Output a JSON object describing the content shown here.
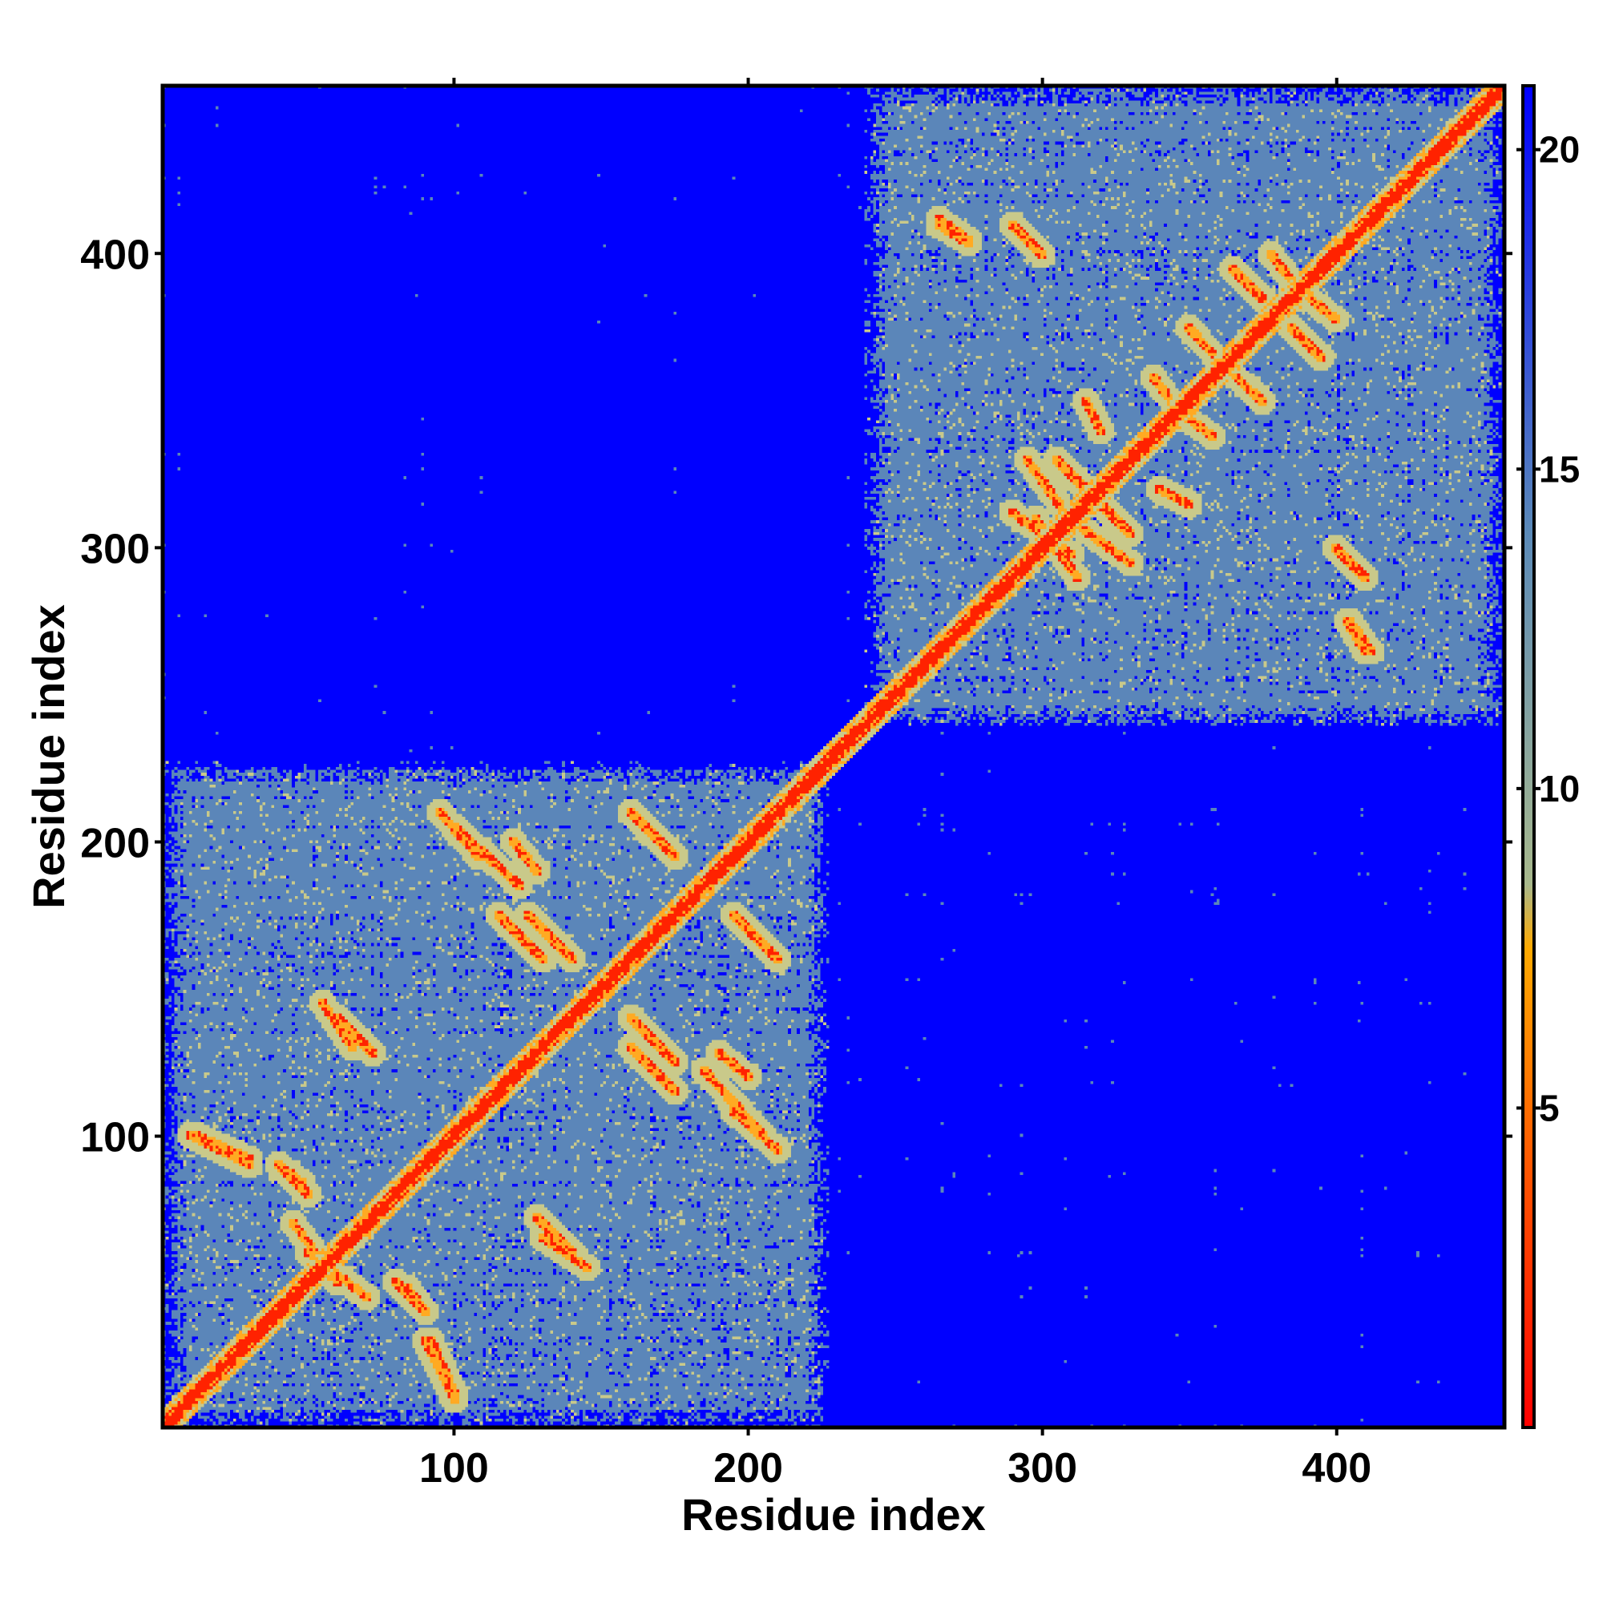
{
  "chart_data": {
    "type": "heatmap",
    "title": "",
    "xlabel": "Residue index",
    "ylabel": "Residue index",
    "xlim": [
      1,
      457
    ],
    "ylim": [
      1,
      457
    ],
    "x_ticks": [
      100,
      200,
      300,
      400
    ],
    "y_ticks": [
      100,
      200,
      300,
      400
    ],
    "grid": false,
    "colorbar": {
      "ticks": [
        5,
        10,
        15,
        20
      ],
      "range": [
        0,
        21
      ],
      "stops": [
        {
          "value": 0,
          "color": "#ff0000"
        },
        {
          "value": 4,
          "color": "#ff5500"
        },
        {
          "value": 7.5,
          "color": "#ffaa00"
        },
        {
          "value": 8.5,
          "color": "#a8b88c"
        },
        {
          "value": 14,
          "color": "#5b8ab8"
        },
        {
          "value": 21,
          "color": "#0000ff"
        }
      ]
    },
    "colors": {
      "background": "#0000ff",
      "domain_fill": "#5b86b9",
      "diagonal": "#ff2200",
      "diagonal_halo": "#ffaa22",
      "near_contact": "#c9c98a"
    },
    "domains": [
      {
        "range": [
          1,
          227
        ],
        "density": 0.78
      },
      {
        "range": [
          240,
          457
        ],
        "density": 0.8
      }
    ],
    "inter_domain_density": 0.08,
    "contact_bands": [
      {
        "from": [
          265,
          410
        ],
        "to": [
          275,
          404
        ],
        "type": "antiparallel"
      },
      {
        "from": [
          290,
          410
        ],
        "to": [
          300,
          400
        ],
        "type": "antiparallel"
      },
      {
        "from": [
          298,
          310
        ],
        "to": [
          312,
          290
        ],
        "type": "antiparallel"
      },
      {
        "from": [
          305,
          330
        ],
        "to": [
          320,
          315
        ],
        "type": "antiparallel"
      },
      {
        "from": [
          312,
          308
        ],
        "to": [
          330,
          295
        ],
        "type": "antiparallel"
      },
      {
        "from": [
          400,
          300
        ],
        "to": [
          410,
          290
        ],
        "type": "antiparallel"
      },
      {
        "from": [
          405,
          275
        ],
        "to": [
          412,
          265
        ],
        "type": "antiparallel"
      },
      {
        "from": [
          378,
          400
        ],
        "to": [
          390,
          385
        ],
        "type": "antiparallel"
      },
      {
        "from": [
          365,
          395
        ],
        "to": [
          375,
          385
        ],
        "type": "antiparallel"
      },
      {
        "from": [
          350,
          375
        ],
        "to": [
          362,
          362
        ],
        "type": "antiparallel"
      },
      {
        "from": [
          345,
          348
        ],
        "to": [
          358,
          338
        ],
        "type": "antiparallel"
      },
      {
        "from": [
          340,
          320
        ],
        "to": [
          350,
          315
        ],
        "type": "antiparallel"
      },
      {
        "from": [
          12,
          100
        ],
        "to": [
          30,
          92
        ],
        "type": "antiparallel"
      },
      {
        "from": [
          40,
          90
        ],
        "to": [
          48,
          84
        ],
        "type": "antiparallel"
      },
      {
        "from": [
          50,
          60
        ],
        "to": [
          70,
          45
        ],
        "type": "antiparallel"
      },
      {
        "from": [
          80,
          50
        ],
        "to": [
          90,
          40
        ],
        "type": "antiparallel"
      },
      {
        "from": [
          60,
          140
        ],
        "to": [
          72,
          128
        ],
        "type": "antiparallel"
      },
      {
        "from": [
          95,
          210
        ],
        "to": [
          108,
          195
        ],
        "type": "antiparallel"
      },
      {
        "from": [
          115,
          175
        ],
        "to": [
          130,
          160
        ],
        "type": "antiparallel"
      },
      {
        "from": [
          120,
          200
        ],
        "to": [
          128,
          190
        ],
        "type": "antiparallel"
      },
      {
        "from": [
          160,
          140
        ],
        "to": [
          175,
          125
        ],
        "type": "antiparallel"
      },
      {
        "from": [
          185,
          122
        ],
        "to": [
          205,
          100
        ],
        "type": "antiparallel"
      },
      {
        "from": [
          195,
          175
        ],
        "to": [
          210,
          160
        ],
        "type": "antiparallel"
      },
      {
        "from": [
          90,
          30
        ],
        "to": [
          100,
          10
        ],
        "type": "parallel"
      },
      {
        "from": [
          130,
          65
        ],
        "to": [
          145,
          55
        ],
        "type": "parallel"
      }
    ]
  }
}
